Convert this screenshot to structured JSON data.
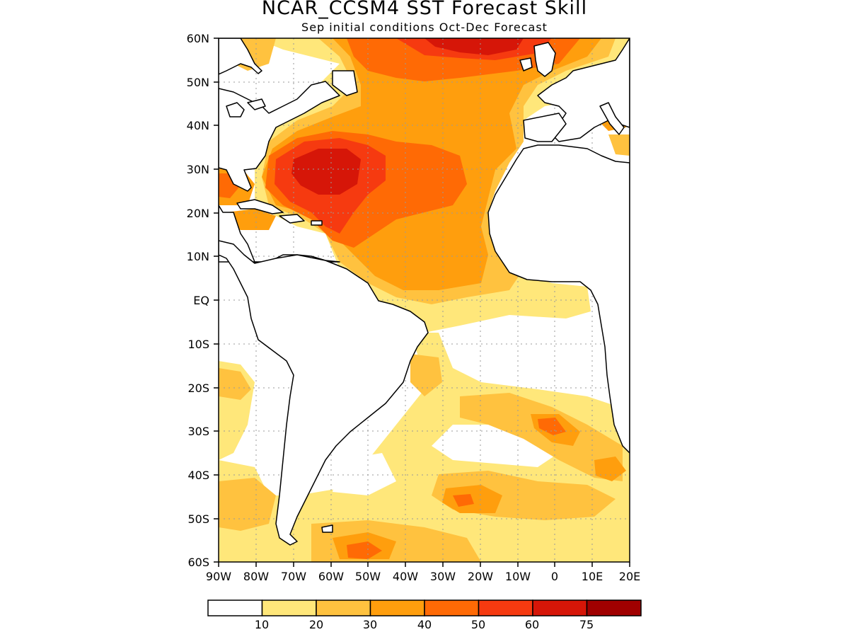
{
  "title": "NCAR_CCSM4  SST Forecast Skill",
  "subtitle": "Sep initial conditions   Oct-Dec Forecast",
  "map": {
    "lon_range": [
      -90,
      20
    ],
    "lat_range": [
      -60,
      60
    ],
    "lat_labels": [
      "60N",
      "50N",
      "40N",
      "30N",
      "20N",
      "10N",
      "EQ",
      "10S",
      "20S",
      "30S",
      "40S",
      "50S",
      "60S"
    ],
    "lon_labels": [
      "90W",
      "80W",
      "70W",
      "60W",
      "50W",
      "40W",
      "30W",
      "20W",
      "10W",
      "0",
      "10E",
      "20E"
    ],
    "grid": "dotted"
  },
  "legend": {
    "labels": [
      "10",
      "20",
      "30",
      "40",
      "50",
      "60",
      "75"
    ],
    "colors": [
      "#ffffff",
      "#ffe77a",
      "#ffc23f",
      "#ff9e0d",
      "#ff6a05",
      "#f63a10",
      "#d61608",
      "#a00000"
    ]
  }
}
